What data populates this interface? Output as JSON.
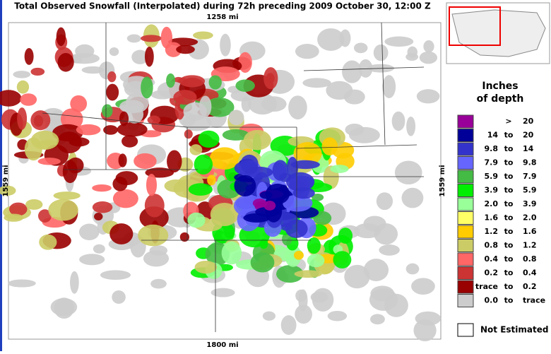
{
  "title": "Total Observed Snowfall (Interpolated) during 72h preceding 2009 October 30, 12:00 Z",
  "map": {
    "top_label": "1258 mi",
    "bottom_label": "1800 mi",
    "left_label": "1559 mi",
    "right_label": "1559 mi"
  },
  "legend": {
    "title_line1": "Inches",
    "title_line2": "of depth",
    "rows": [
      {
        "color": "#990099",
        "mid": ">",
        "high": "20"
      },
      {
        "color": "#000099",
        "low": "14",
        "mid": "to",
        "high": "20"
      },
      {
        "color": "#3333cc",
        "low": "9.8",
        "mid": "to",
        "high": "14"
      },
      {
        "color": "#6666ff",
        "low": "7.9",
        "mid": "to",
        "high": "9.8"
      },
      {
        "color": "#44bb44",
        "low": "5.9",
        "mid": "to",
        "high": "7.9"
      },
      {
        "color": "#00ee00",
        "low": "3.9",
        "mid": "to",
        "high": "5.9"
      },
      {
        "color": "#99ff99",
        "low": "2.0",
        "mid": "to",
        "high": "3.9"
      },
      {
        "color": "#ffff66",
        "low": "1.6",
        "mid": "to",
        "high": "2.0"
      },
      {
        "color": "#ffcc00",
        "low": "1.2",
        "mid": "to",
        "high": "1.6"
      },
      {
        "color": "#cccc66",
        "low": "0.8",
        "mid": "to",
        "high": "1.2"
      },
      {
        "color": "#ff6666",
        "low": "0.4",
        "mid": "to",
        "high": "0.8"
      },
      {
        "color": "#cc3333",
        "low": "0.2",
        "mid": "to",
        "high": "0.4"
      },
      {
        "color": "#990000",
        "low": "trace",
        "mid": "to",
        "high": "0.2"
      },
      {
        "color": "#cccccc",
        "low": "0.0",
        "mid": "to",
        "high": "trace"
      }
    ],
    "not_estimated": "Not Estimated"
  }
}
